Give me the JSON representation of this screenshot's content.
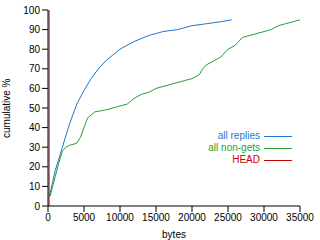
{
  "chart_data": {
    "type": "line",
    "xlabel": "bytes",
    "ylabel": "cumulative %",
    "xlim": [
      0,
      35000
    ],
    "xticks": [
      0,
      5000,
      10000,
      15000,
      20000,
      25000,
      30000,
      35000
    ],
    "ylim": [
      0,
      100
    ],
    "yticks": [
      0,
      10,
      20,
      30,
      40,
      50,
      60,
      70,
      80,
      90,
      100
    ],
    "grid": false,
    "legend": "lower right",
    "series": [
      {
        "name": "all replies",
        "color": "#1f77d0",
        "x": [
          200,
          1000,
          2000,
          3000,
          4000,
          5000,
          6000,
          7000,
          8000,
          9000,
          10000,
          12000,
          14000,
          16000,
          18000,
          20000,
          22000,
          24000,
          25500
        ],
        "values": [
          5,
          18,
          30,
          42,
          52,
          59,
          65,
          70,
          74,
          77,
          80,
          84,
          87,
          89,
          90,
          92,
          93,
          94,
          95
        ]
      },
      {
        "name": "all non-gets",
        "color": "#22a033",
        "x": [
          300,
          1000,
          1500,
          2000,
          2500,
          3000,
          4000,
          4500,
          5000,
          5500,
          6500,
          8000,
          9000,
          10000,
          11000,
          12000,
          13000,
          14000,
          15000,
          17000,
          19000,
          20000,
          21000,
          21500,
          22000,
          23000,
          24000,
          25000,
          26000,
          26500,
          27000,
          28000,
          30000,
          31000,
          32000,
          33000,
          34000,
          35000
        ],
        "values": [
          5,
          15,
          22,
          28,
          30,
          31,
          32,
          35,
          40,
          45,
          48,
          49,
          50,
          51,
          52,
          55,
          57,
          58,
          60,
          62,
          64,
          65,
          67,
          70,
          72,
          74,
          76,
          80,
          82,
          84,
          86,
          87,
          89,
          90,
          92,
          93,
          94,
          95
        ]
      },
      {
        "name": "HEAD",
        "color": "#cc0000",
        "x": [
          150,
          150
        ],
        "values": [
          0,
          100
        ]
      }
    ]
  }
}
